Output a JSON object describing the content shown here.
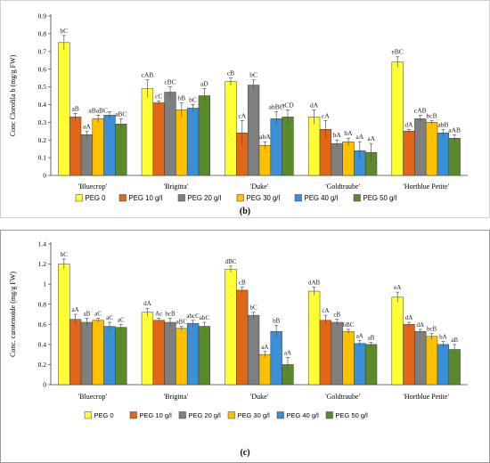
{
  "colors": {
    "PEG 0": "#ffff33",
    "PEG 10 g/l": "#e0661a",
    "PEG 20 g/l": "#7f7f7f",
    "PEG 30 g/l": "#ffc000",
    "PEG 40 g/l": "#3a8fd6",
    "PEG 50 g/l": "#5b8a2d"
  },
  "panels": {
    "b_label": "(b)",
    "c_label": "(c)"
  },
  "chart_data": [
    {
      "type": "bar",
      "panel": "b",
      "ylabel": "Conc Clorofila b (mg/g FW)",
      "ylim": [
        0,
        0.9
      ],
      "yticks": [
        "0",
        "0.1",
        "0.2",
        "0.3",
        "0.4",
        "0.5",
        "0.6",
        "0.7",
        "0.8",
        "0.9"
      ],
      "categories": [
        "'Bluecrop'",
        "'Brigitta'",
        "'Duke'",
        "'Goldtraube'",
        "'Hortblue Petite'"
      ],
      "legend_position": "bottom",
      "grid": false,
      "series": [
        {
          "name": "PEG 0",
          "values": [
            0.75,
            0.49,
            0.53,
            0.33,
            0.64
          ],
          "errors": [
            0.04,
            0.05,
            0.02,
            0.04,
            0.03
          ],
          "labels": [
            "bC",
            "cAB",
            "cB",
            "dA",
            "eBC"
          ]
        },
        {
          "name": "PEG 10 g/l",
          "values": [
            0.33,
            0.41,
            0.24,
            0.26,
            0.25
          ],
          "errors": [
            0.02,
            0.01,
            0.07,
            0.05,
            0.01
          ],
          "labels": [
            "aB",
            "cC",
            "cA",
            "cA",
            "dA"
          ]
        },
        {
          "name": "PEG 20 g/l",
          "values": [
            0.23,
            0.47,
            0.51,
            0.18,
            0.32
          ],
          "errors": [
            0.02,
            0.03,
            0.03,
            0.02,
            0.02
          ],
          "labels": [
            "aA",
            "cBC",
            "bC",
            "bA",
            "cAB"
          ]
        },
        {
          "name": "PEG 30 g/l",
          "values": [
            0.32,
            0.37,
            0.17,
            0.19,
            0.3
          ],
          "errors": [
            0.02,
            0.04,
            0.02,
            0.02,
            0.01
          ],
          "labels": [
            "aBaBC",
            "bB",
            "abA",
            "bA",
            "bcB"
          ]
        },
        {
          "name": "PEG 40 g/l",
          "values": [
            0.34,
            0.38,
            0.32,
            0.14,
            0.24
          ],
          "errors": [
            0.02,
            0.02,
            0.04,
            0.05,
            0.02
          ],
          "labels": [
            "",
            "bC",
            "abBC",
            "aA",
            "abB"
          ]
        },
        {
          "name": "PEG 50 g/l",
          "values": [
            0.29,
            0.45,
            0.33,
            0.13,
            0.21
          ],
          "errors": [
            0.03,
            0.04,
            0.04,
            0.05,
            0.02
          ],
          "labels": [
            "aBC",
            "aD",
            "aCD",
            "aA",
            "aAB"
          ]
        }
      ]
    },
    {
      "type": "bar",
      "panel": "c",
      "ylabel": "Conc. carotenoide (mg/g FW)",
      "ylim": [
        0,
        1.4
      ],
      "yticks": [
        "0",
        "0.2",
        "0.4",
        "0.6",
        "0.8",
        "1",
        "1.2",
        "1.4"
      ],
      "categories": [
        "'Bluecrop'",
        "'Brigitta'",
        "'Duke'",
        "'Goldtraube'",
        "'Hortblue Petite'"
      ],
      "legend_position": "bottom",
      "grid": false,
      "series": [
        {
          "name": "PEG 0",
          "values": [
            1.2,
            0.72,
            1.15,
            0.93,
            0.87
          ],
          "errors": [
            0.05,
            0.04,
            0.03,
            0.04,
            0.05
          ],
          "labels": [
            "bC",
            "dA",
            "dBC",
            "dAB",
            "eA"
          ]
        },
        {
          "name": "PEG 10 g/l",
          "values": [
            0.65,
            0.64,
            0.94,
            0.64,
            0.6
          ],
          "errors": [
            0.05,
            0.02,
            0.03,
            0.05,
            0.02
          ],
          "labels": [
            "aA",
            "Ac",
            "cB",
            "cA",
            "dA"
          ]
        },
        {
          "name": "PEG 20 g/l",
          "values": [
            0.62,
            0.62,
            0.69,
            0.62,
            0.53
          ],
          "errors": [
            0.04,
            0.04,
            0.03,
            0.03,
            0.02
          ],
          "labels": [
            "aB",
            "bcB",
            "bC",
            "cB",
            "dA"
          ]
        },
        {
          "name": "PEG 30 g/l",
          "values": [
            0.64,
            0.56,
            0.3,
            0.53,
            0.48
          ],
          "errors": [
            0.02,
            0.02,
            0.03,
            0.02,
            0.03
          ],
          "labels": [
            "aC",
            "aBC",
            "aA",
            "bBC",
            "bcB"
          ]
        },
        {
          "name": "PEG 40 g/l",
          "values": [
            0.58,
            0.61,
            0.53,
            0.41,
            0.4
          ],
          "errors": [
            0.04,
            0.03,
            0.06,
            0.03,
            0.03
          ],
          "labels": [
            "aC",
            "abcC",
            "bB",
            "aA",
            "bA"
          ]
        },
        {
          "name": "PEG 50 g/l",
          "values": [
            0.57,
            0.58,
            0.2,
            0.4,
            0.35
          ],
          "errors": [
            0.03,
            0.04,
            0.07,
            0.02,
            0.05
          ],
          "labels": [
            "aC",
            "abC",
            "aA",
            "aB",
            "aB"
          ]
        }
      ]
    }
  ]
}
